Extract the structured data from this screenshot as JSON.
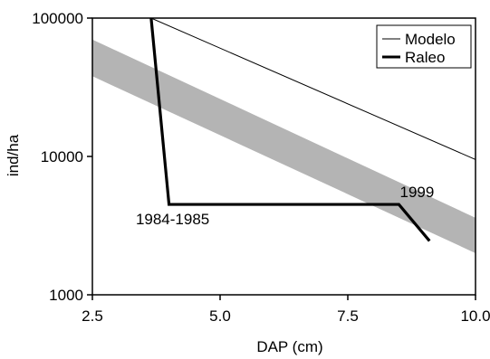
{
  "chart_data": {
    "type": "line",
    "xlabel": "DAP (cm)",
    "ylabel": "ind/ha",
    "xlim": [
      2.5,
      10.0
    ],
    "ylim": [
      1000,
      100000
    ],
    "y_scale": "log",
    "x_ticks": [
      2.5,
      5.0,
      7.5,
      10.0
    ],
    "x_tick_labels": [
      "2.5",
      "5.0",
      "7.5",
      "10.0"
    ],
    "y_ticks": [
      1000,
      10000,
      100000
    ],
    "y_tick_labels": [
      "1000",
      "10000",
      "100000"
    ],
    "band": {
      "color": "#b4b4b4",
      "lower": {
        "x": [
          2.5,
          10.0
        ],
        "y": [
          38000,
          2000
        ]
      },
      "upper": {
        "x": [
          2.5,
          10.0
        ],
        "y": [
          70000,
          3600
        ]
      }
    },
    "series": [
      {
        "name": "Modelo",
        "color": "#000000",
        "line_weight": "thin",
        "x": [
          3.65,
          10.0
        ],
        "y": [
          100000,
          9500
        ]
      },
      {
        "name": "Raleo",
        "color": "#000000",
        "line_weight": "thick",
        "x": [
          3.65,
          4.0,
          8.5,
          9.1
        ],
        "y": [
          100000,
          4500,
          4500,
          2450
        ]
      }
    ],
    "annotations": [
      {
        "text": "1984-1985",
        "x": 4.0,
        "y": 4500
      },
      {
        "text": "1999",
        "x": 8.5,
        "y": 4500
      }
    ],
    "legend": {
      "position": "top-right",
      "entries": [
        "Modelo",
        "Raleo"
      ]
    },
    "grid": false
  }
}
